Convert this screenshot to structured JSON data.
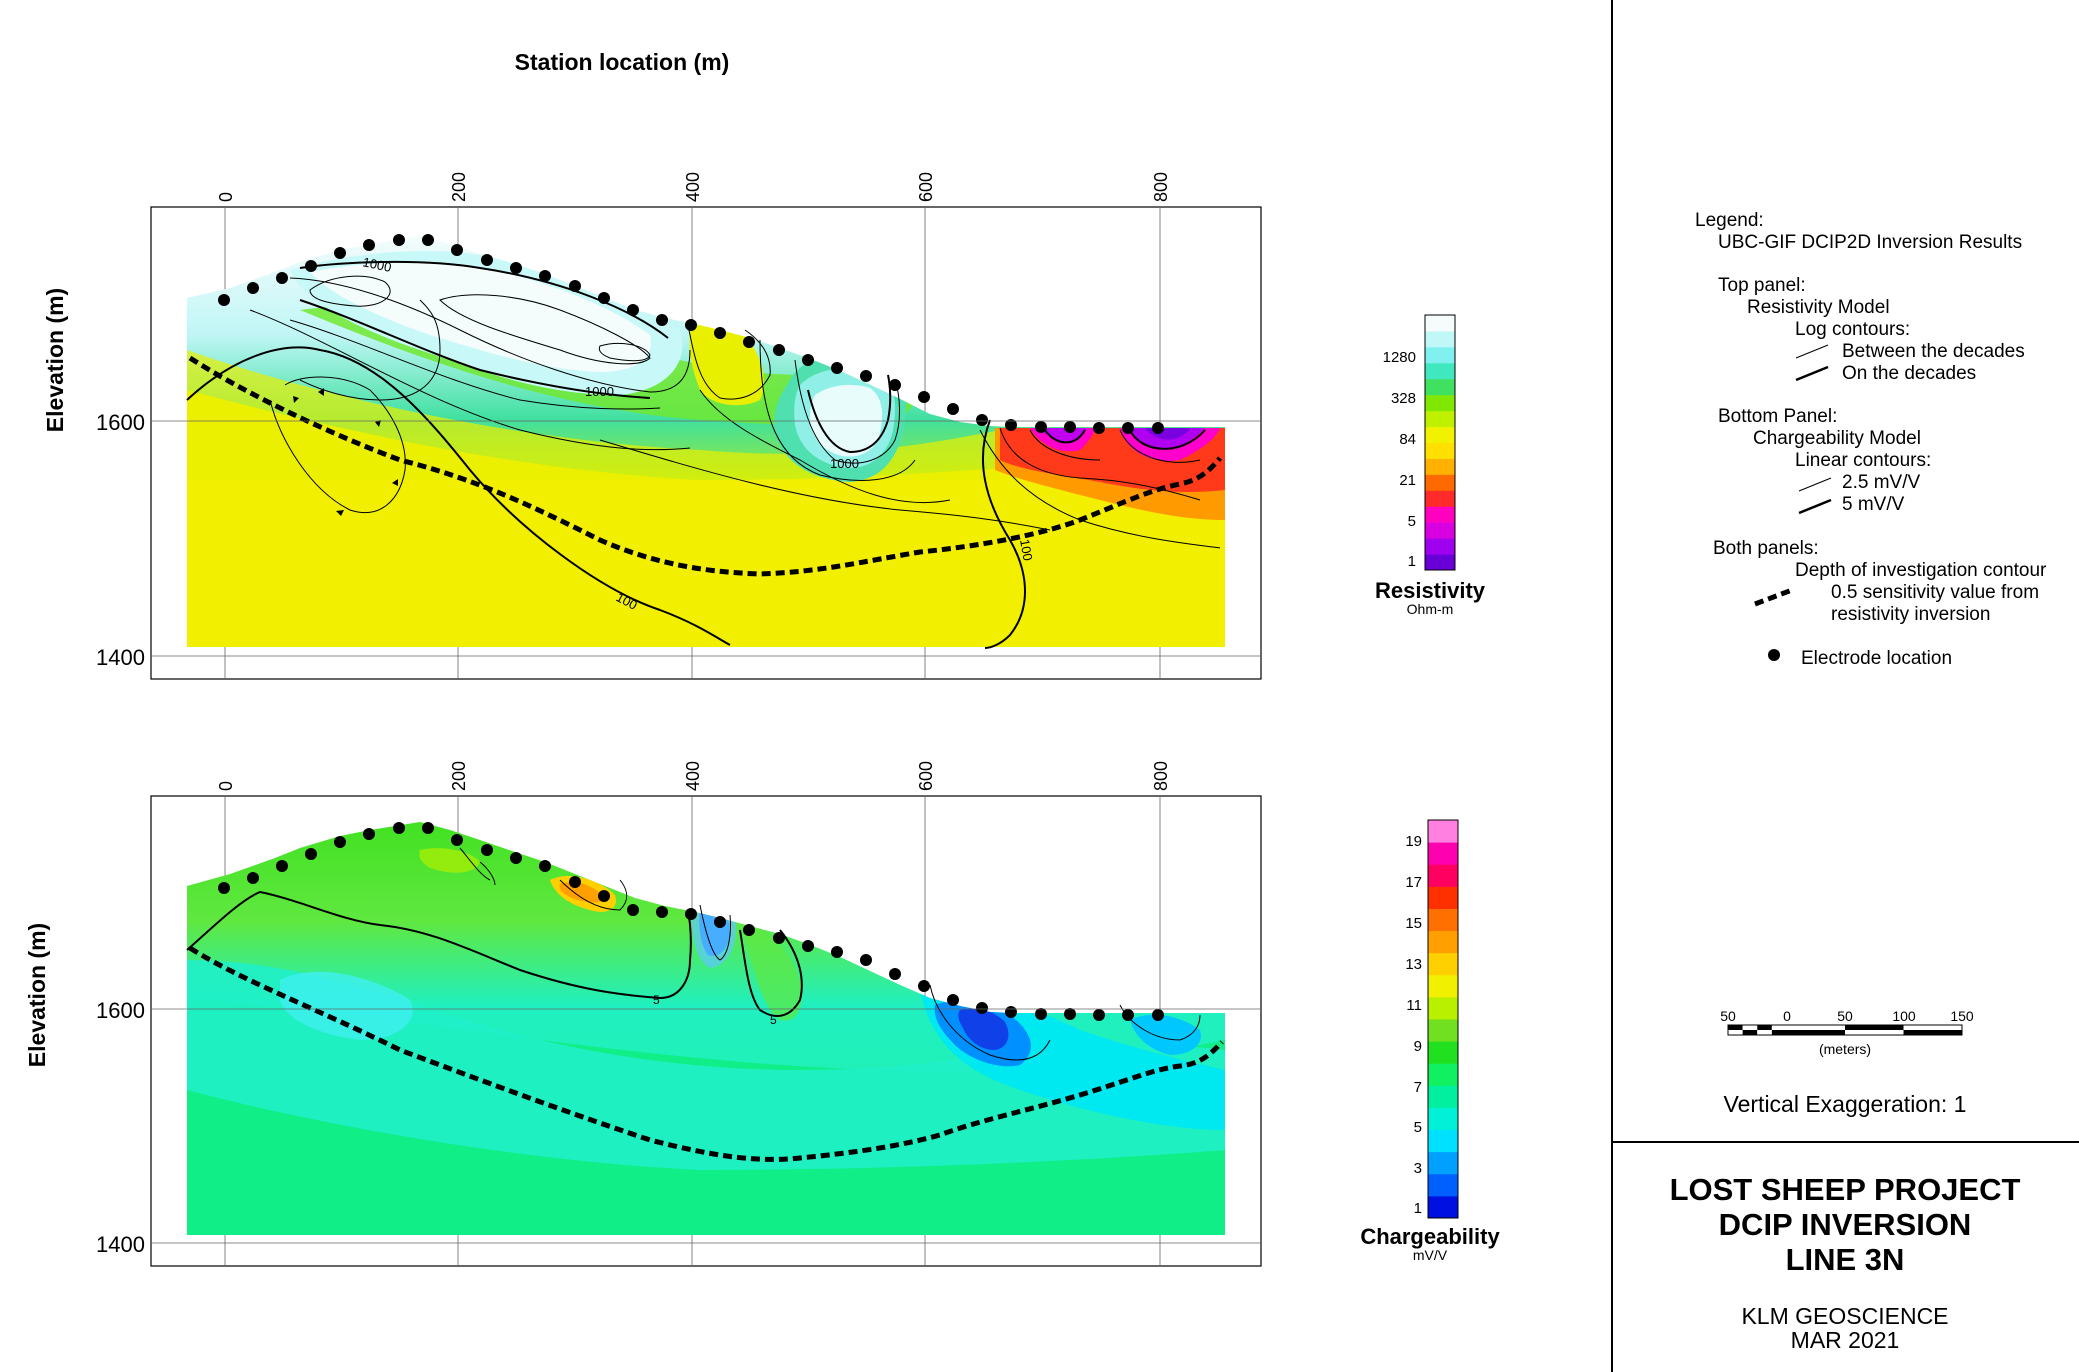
{
  "header": {
    "station_axis_title": "Station location (m)"
  },
  "x_ticks": [
    "0",
    "200",
    "400",
    "600",
    "800"
  ],
  "panels": [
    {
      "id": "resistivity",
      "elevation_label": "Elevation (m)",
      "y_ticks": [
        "1600",
        "1400"
      ],
      "contour_labels": [
        "1000",
        "1000",
        "1000",
        "100",
        "100"
      ],
      "colorbar": {
        "title": "Resistivity",
        "unit": "Ohm-m",
        "tick_labels": [
          "1280",
          "328",
          "84",
          "21",
          "5",
          "1"
        ],
        "colors": [
          "#6a00d8",
          "#a000f0",
          "#d800e0",
          "#ff00c0",
          "#ff2a2a",
          "#ff6a00",
          "#ffb000",
          "#ffe000",
          "#f2f200",
          "#bff000",
          "#80e800",
          "#40e060",
          "#40e8c0",
          "#80f0f0",
          "#c0f8f8",
          "#f6fcfc"
        ]
      }
    },
    {
      "id": "chargeability",
      "elevation_label": "Elevation (m)",
      "y_ticks": [
        "1600",
        "1400"
      ],
      "contour_labels": [
        "5",
        "5"
      ],
      "colorbar": {
        "title": "Chargeability",
        "unit": "mV/V",
        "tick_labels": [
          "19",
          "17",
          "15",
          "13",
          "11",
          "9",
          "7",
          "5",
          "3",
          "1"
        ],
        "colors": [
          "#0010e0",
          "#0060ff",
          "#00a0ff",
          "#00e0ff",
          "#00f0d8",
          "#00f0a0",
          "#10f060",
          "#20e020",
          "#70e020",
          "#b8f000",
          "#f0f000",
          "#ffd000",
          "#ffa000",
          "#ff7000",
          "#ff3000",
          "#ff0060",
          "#ff00b0",
          "#ff80e0"
        ]
      }
    }
  ],
  "legend": {
    "title": "Legend:",
    "subtitle": "UBC-GIF DCIP2D Inversion Results",
    "top_panel": "Top panel:",
    "top_model": "Resistivity Model",
    "log_contours": "Log contours:",
    "between_decades": "Between the decades",
    "on_decades": "On the decades",
    "bottom_panel": "Bottom Panel:",
    "bottom_model": "Chargeability Model",
    "linear_contours": "Linear contours:",
    "c1": "2.5  mV/V",
    "c2": "5 mV/V",
    "both_panels": "Both panels:",
    "doi_line1": "Depth of investigation contour",
    "doi_line2": "0.5 sensitivity value from",
    "doi_line3": "resistivity inversion",
    "electrode": "Electrode location"
  },
  "scale_bar": {
    "ticks": [
      "50",
      "0",
      "50",
      "100",
      "150"
    ],
    "unit": "(meters)"
  },
  "vertical_exaggeration": "Vertical Exaggeration: 1",
  "title_block": {
    "line1": "LOST SHEEP PROJECT",
    "line2": "DCIP INVERSION",
    "line3": "LINE 3N",
    "company": "KLM GEOSCIENCE",
    "date": "MAR 2021"
  }
}
